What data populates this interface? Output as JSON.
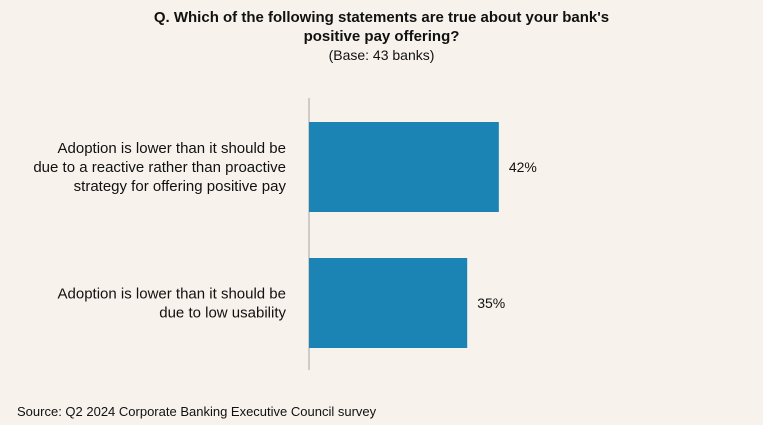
{
  "chart_data": {
    "type": "bar",
    "orientation": "horizontal",
    "title_lines": [
      "Q. Which of the following statements are true about your bank's",
      "positive pay offering?"
    ],
    "subtitle": "(Base: 43 banks)",
    "categories": [
      {
        "label_lines": [
          "Adoption is lower than it should be",
          "due to a reactive rather than proactive",
          "strategy for offering positive pay"
        ]
      },
      {
        "label_lines": [
          "Adoption is lower than it should be",
          "due to low usability"
        ]
      }
    ],
    "values": [
      42,
      35
    ],
    "value_labels": [
      "42%",
      "35%"
    ],
    "xlim": [
      0,
      100
    ],
    "grid": false,
    "bar_color": "#1b84b4",
    "source": "Source: Q2 2024 Corporate Banking Executive Council survey"
  }
}
